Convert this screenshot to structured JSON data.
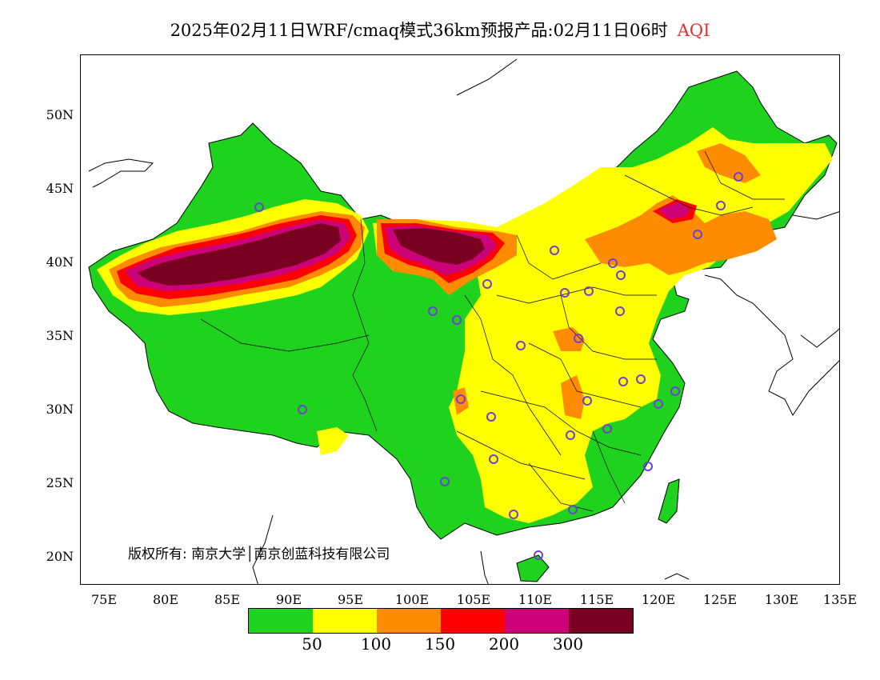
{
  "title": {
    "text": "2025年02月11日WRF/cmaq模式36km预报产品:02月11日06时",
    "variable": "AQI"
  },
  "map": {
    "lat_labels": [
      "50N",
      "45N",
      "40N",
      "35N",
      "30N",
      "25N",
      "20N"
    ],
    "lon_labels": [
      "75E",
      "80E",
      "85E",
      "90E",
      "95E",
      "100E",
      "105E",
      "110E",
      "115E",
      "120E",
      "125E",
      "130E",
      "135E"
    ],
    "lon_range": [
      73,
      135
    ],
    "lat_range": [
      18,
      54
    ],
    "copyright": "版权所有: 南京大学│南京创蓝科技有限公司"
  },
  "legend": {
    "colors": [
      "#1ed21e",
      "#ffff00",
      "#ff8c00",
      "#ff0000",
      "#cc0077",
      "#7a0022"
    ],
    "labels": [
      "50",
      "100",
      "150",
      "200",
      "300"
    ]
  },
  "colors": {
    "good": "#1ed21e",
    "moderate": "#ffff00",
    "unhealthy_sensitive": "#ff8c00",
    "unhealthy": "#ff0000",
    "very_unhealthy": "#cc0077",
    "hazardous": "#7a0022",
    "site_marker": "#7040d0"
  }
}
